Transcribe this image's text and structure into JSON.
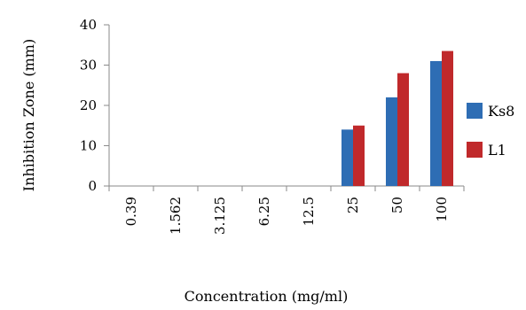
{
  "chart_data": {
    "type": "bar",
    "categories": [
      "0.39",
      "1.562",
      "3.125",
      "6.25",
      "12.5",
      "25",
      "50",
      "100"
    ],
    "series": [
      {
        "name": "Ks8",
        "values": [
          0,
          0,
          0,
          0,
          0,
          14,
          22,
          31
        ],
        "color": "#2E6DB4"
      },
      {
        "name": "L1",
        "values": [
          0,
          0,
          0,
          0,
          0,
          15,
          28,
          33.5
        ],
        "color": "#C0292B"
      }
    ],
    "xlabel": "Concentration (mg/ml)",
    "ylabel": "Inhibition Zone (mm)",
    "ylim": [
      0,
      40
    ],
    "yticks": [
      0,
      10,
      20,
      30,
      40
    ],
    "grid": false,
    "legend_position": "right"
  }
}
